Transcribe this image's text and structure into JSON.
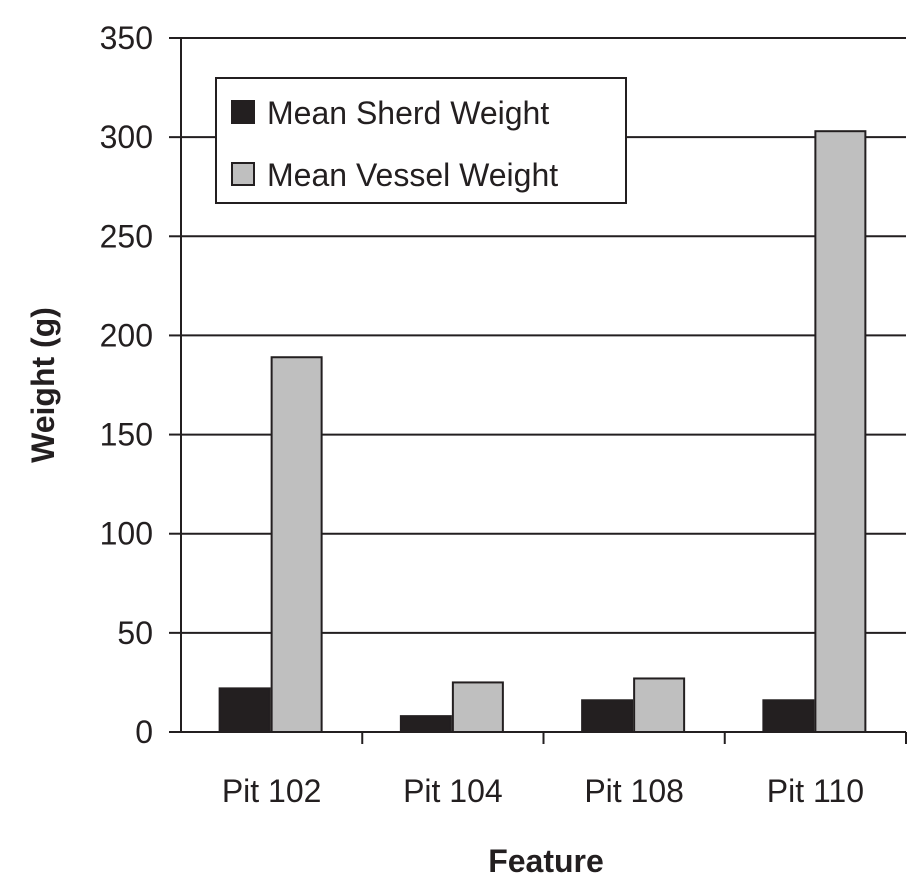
{
  "chart_data": {
    "type": "bar",
    "xlabel": "Feature",
    "ylabel": "Weight (g)",
    "categories": [
      "Pit 102",
      "Pit 104",
      "Pit 108",
      "Pit 110"
    ],
    "series": [
      {
        "name": "Mean Sherd Weight",
        "values": [
          22,
          8,
          16,
          16
        ],
        "color": "#231f20"
      },
      {
        "name": "Mean Vessel Weight",
        "values": [
          189,
          25,
          27,
          303
        ],
        "color": "#bfbfbf"
      }
    ],
    "ylim": [
      0,
      350
    ],
    "yticks": [
      "0",
      "50",
      "100",
      "150",
      "200",
      "250",
      "300",
      "350"
    ],
    "grid": true,
    "legend_position": "top-left"
  }
}
